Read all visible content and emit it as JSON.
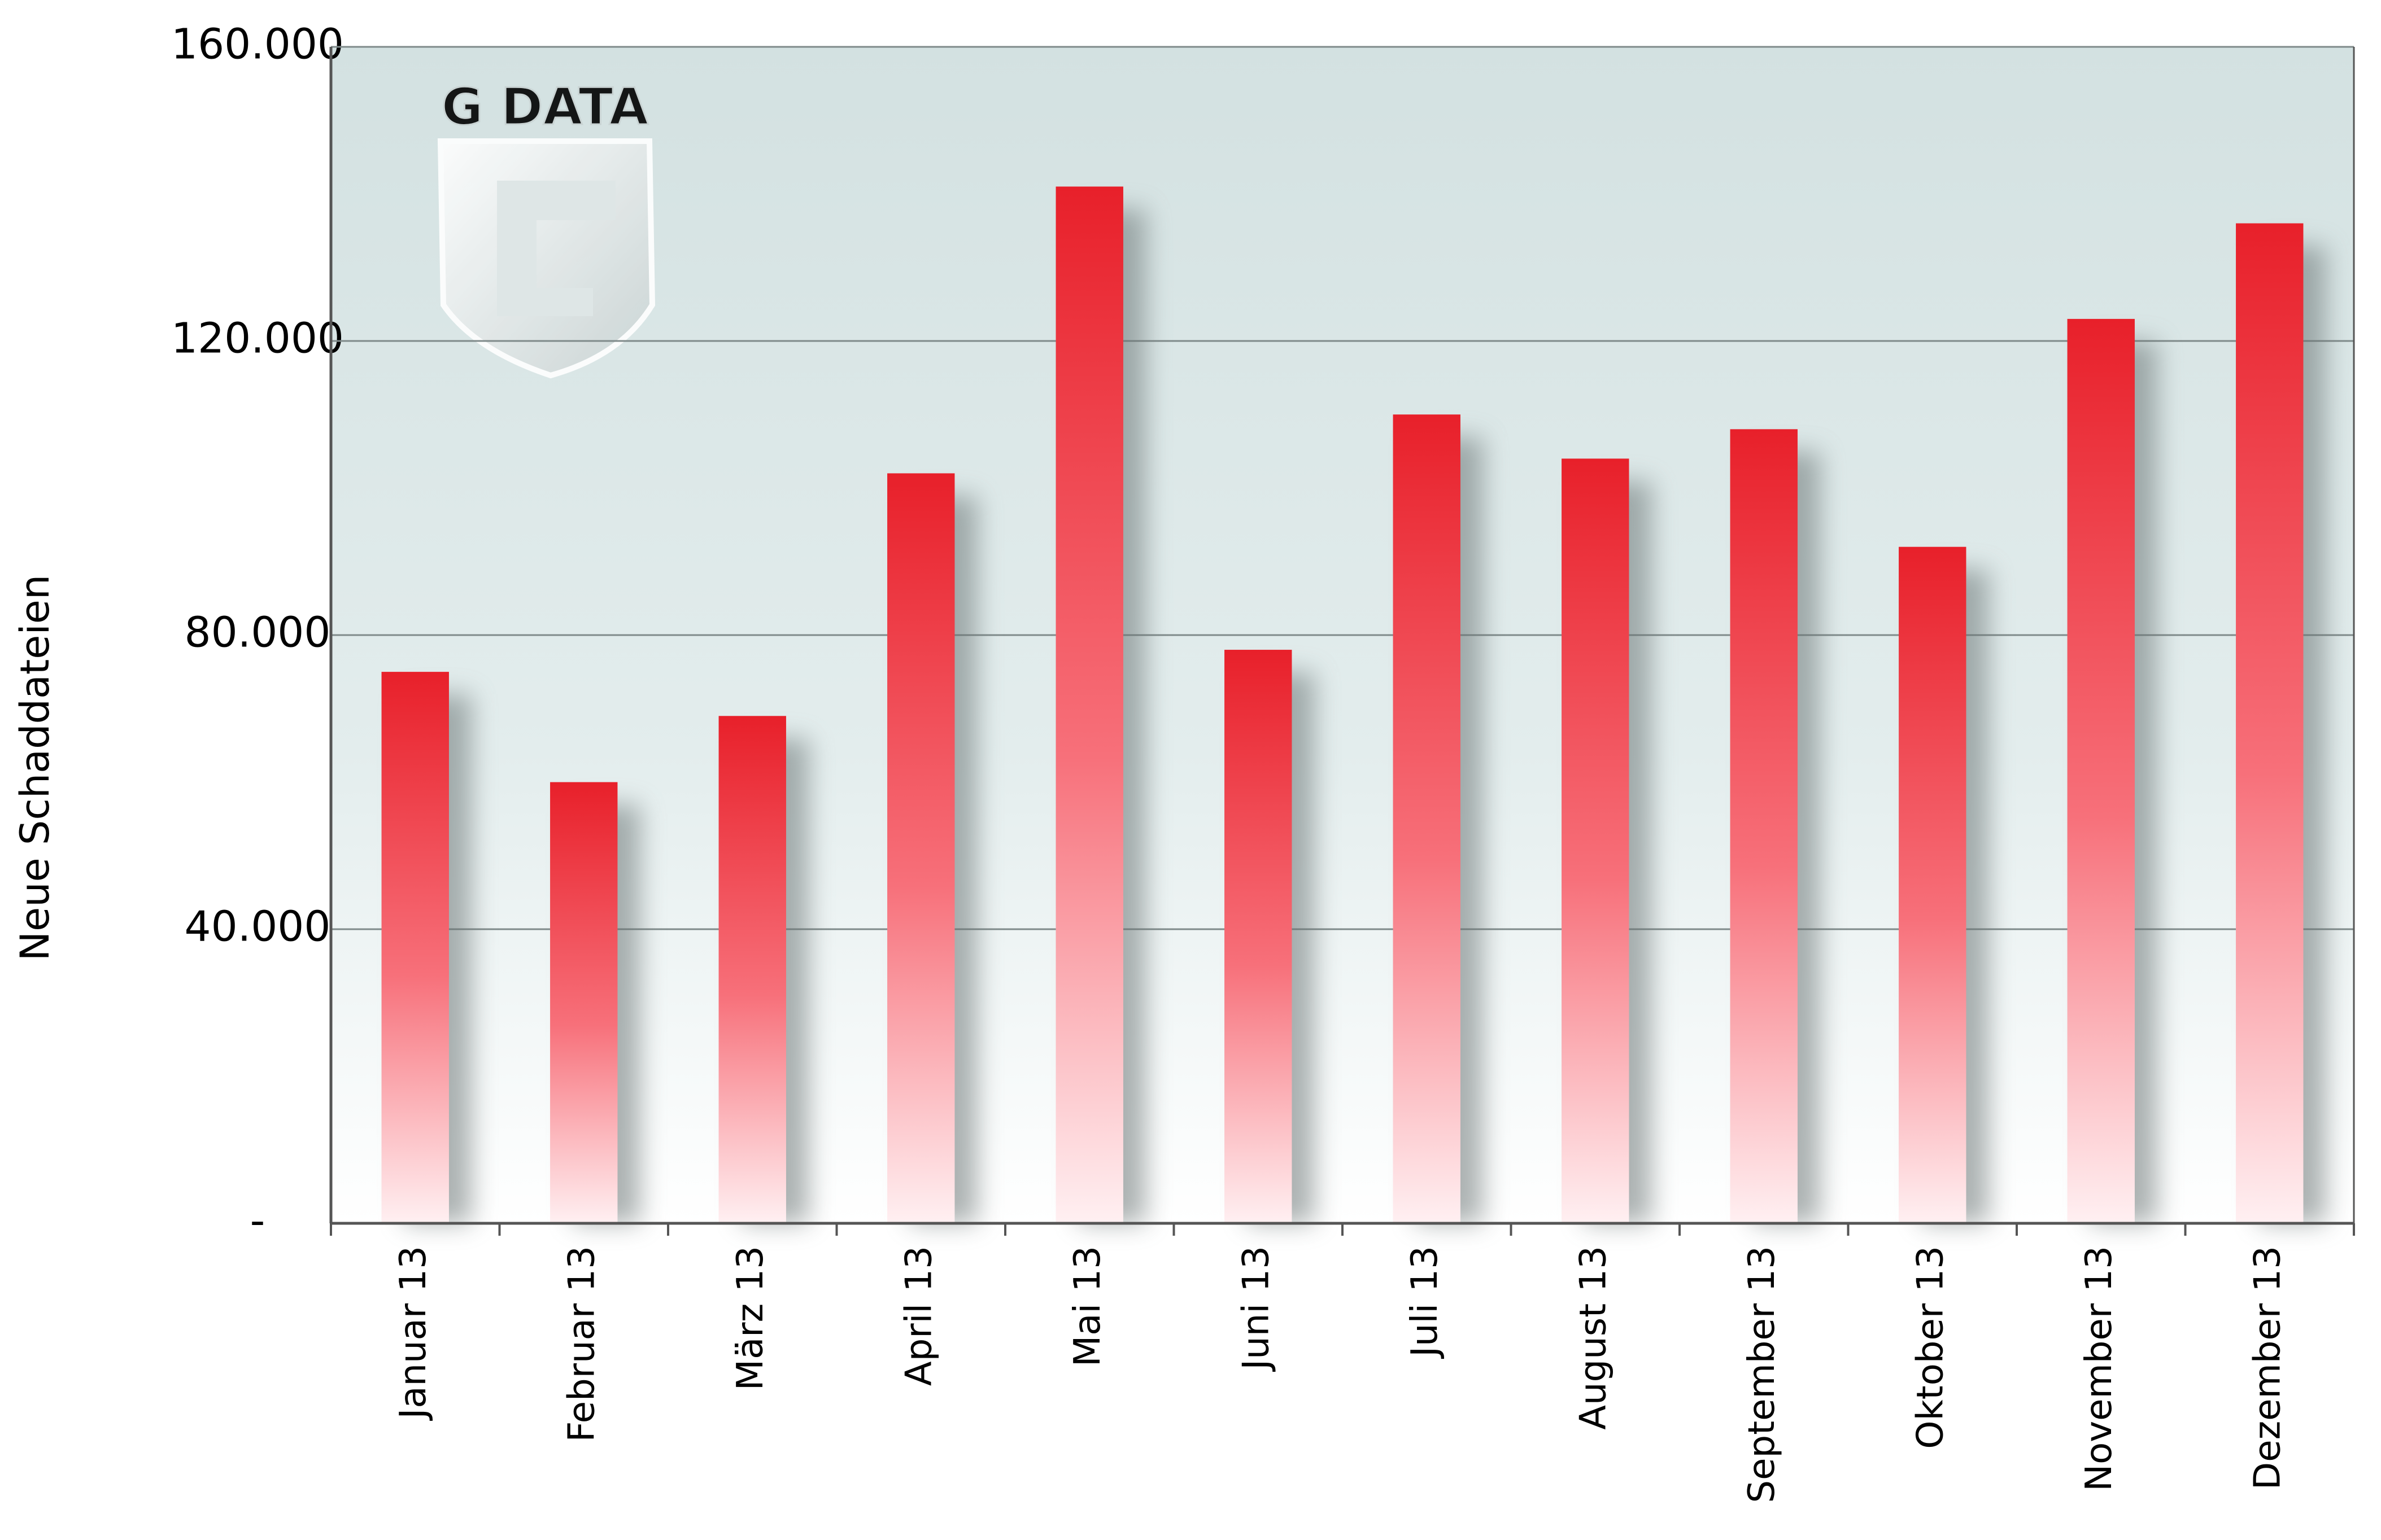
{
  "logo": "G DATA",
  "chart_data": {
    "type": "bar",
    "y_label": "Neue Schaddateien",
    "categories": [
      "Januar 13",
      "Februar 13",
      "März 13",
      "April 13",
      "Mai 13",
      "Juni 13",
      "Juli 13",
      "August 13",
      "September 13",
      "Oktober 13",
      "November 13",
      "Dezember 13"
    ],
    "values": [
      75000,
      60000,
      69000,
      102000,
      141000,
      78000,
      110000,
      104000,
      108000,
      92000,
      123000,
      136000
    ],
    "color": "#e8202a",
    "ylim": [
      0,
      160000
    ],
    "yticks": [
      {
        "value": 0,
        "label": "-"
      },
      {
        "value": 40000,
        "label": "40.000"
      },
      {
        "value": 80000,
        "label": "80.000"
      },
      {
        "value": 120000,
        "label": "120.000"
      },
      {
        "value": 160000,
        "label": "160.000"
      }
    ],
    "grid": true
  }
}
